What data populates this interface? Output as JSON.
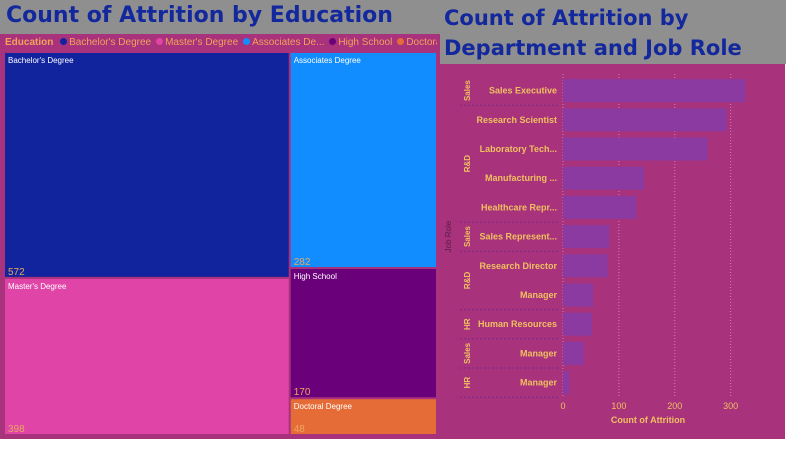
{
  "left_visual": {
    "title": "Count of Attrition by Education"
  },
  "right_visual": {
    "title": "Count of Attrition by Department and Job Role"
  },
  "chart_data": [
    {
      "type": "treemap",
      "title": "Count of Attrition by Education",
      "legend_title": "Education",
      "legend_items": [
        {
          "label": "Bachelor's Degree",
          "color": "#12239e"
        },
        {
          "label": "Master's Degree",
          "color": "#e044a7"
        },
        {
          "label": "Associates De...",
          "color": "#118dff"
        },
        {
          "label": "High School",
          "color": "#6b007b"
        },
        {
          "label": "Doctoral ...",
          "color": "#e66c37"
        }
      ],
      "legend_placement": "top-left",
      "categories": [
        "Bachelor's Degree",
        "Master's Degree",
        "Associates Degree",
        "High School",
        "Doctoral Degree"
      ],
      "values": [
        572,
        398,
        282,
        170,
        48
      ],
      "colors": [
        "#12239e",
        "#e044a7",
        "#118dff",
        "#6b007b",
        "#e66c37"
      ]
    },
    {
      "type": "bar",
      "orientation": "horizontal",
      "title": "Count of Attrition by Department and Job Role",
      "xlabel": "Count of Attrition",
      "ylabel": "Job Role",
      "xlim": [
        0,
        340
      ],
      "xticks": [
        0,
        100,
        200,
        300
      ],
      "grid": true,
      "bar_color": "#8a3aa0",
      "groups": [
        {
          "department": "Sales",
          "roles": [
            {
              "label": "Sales Executive",
              "value": 326
            }
          ]
        },
        {
          "department": "R&D",
          "roles": [
            {
              "label": "Research Scientist",
              "value": 293
            },
            {
              "label": "Laboratory Tech...",
              "value": 259
            },
            {
              "label": "Manufacturing ...",
              "value": 145
            },
            {
              "label": "Healthcare Repr...",
              "value": 131
            }
          ]
        },
        {
          "department": "Sales",
          "roles": [
            {
              "label": "Sales Represent...",
              "value": 83
            }
          ]
        },
        {
          "department": "R&D",
          "roles": [
            {
              "label": "Research Director",
              "value": 80
            },
            {
              "label": "Manager",
              "value": 54
            }
          ]
        },
        {
          "department": "HR",
          "roles": [
            {
              "label": "Human Resources",
              "value": 52
            }
          ]
        },
        {
          "department": "Sales",
          "roles": [
            {
              "label": "Manager",
              "value": 37
            }
          ]
        },
        {
          "department": "HR",
          "roles": [
            {
              "label": "Manager",
              "value": 11
            }
          ]
        }
      ]
    }
  ]
}
